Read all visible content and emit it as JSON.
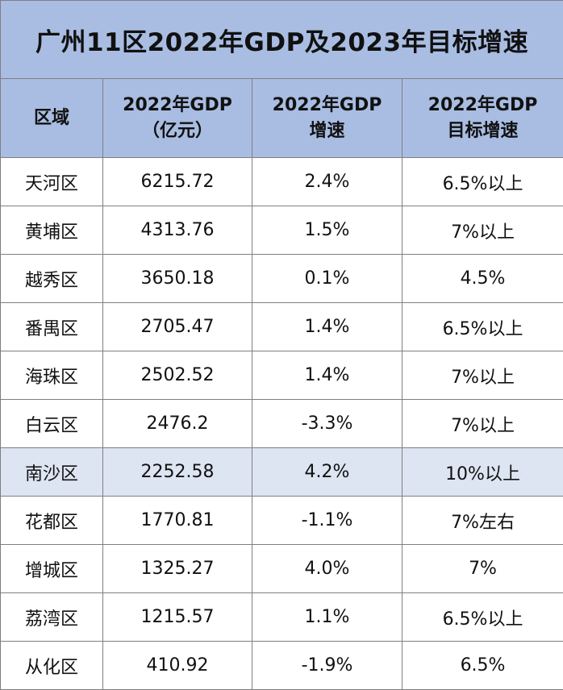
{
  "title": "广州11区2022年GDP及2023年目标增速",
  "headers": {
    "district": "区域",
    "gdp_line1": "2022年GDP",
    "gdp_line2": "（亿元）",
    "growth_line1": "2022年GDP",
    "growth_line2": "增速",
    "target_line1": "2022年GDP",
    "target_line2": "目标增速"
  },
  "rows": [
    {
      "district": "天河区",
      "gdp": "6215.72",
      "growth": "2.4%",
      "target": "6.5%以上"
    },
    {
      "district": "黄埔区",
      "gdp": "4313.76",
      "growth": "1.5%",
      "target": "7%以上"
    },
    {
      "district": "越秀区",
      "gdp": "3650.18",
      "growth": "0.1%",
      "target": "4.5%"
    },
    {
      "district": "番禺区",
      "gdp": "2705.47",
      "growth": "1.4%",
      "target": "6.5%以上"
    },
    {
      "district": "海珠区",
      "gdp": "2502.52",
      "growth": "1.4%",
      "target": "7%以上"
    },
    {
      "district": "白云区",
      "gdp": "2476.2",
      "growth": "-3.3%",
      "target": "7%以上"
    },
    {
      "district": "南沙区",
      "gdp": "2252.58",
      "growth": "4.2%",
      "target": "10%以上"
    },
    {
      "district": "花都区",
      "gdp": "1770.81",
      "growth": "-1.1%",
      "target": "7%左右"
    },
    {
      "district": "增城区",
      "gdp": "1325.27",
      "growth": "4.0%",
      "target": "7%"
    },
    {
      "district": "荔湾区",
      "gdp": "1215.57",
      "growth": "1.1%",
      "target": "6.5%以上"
    },
    {
      "district": "从化区",
      "gdp": "410.92",
      "growth": "-1.9%",
      "target": "6.5%"
    }
  ],
  "colors": {
    "header_bg": "#a9bde3",
    "highlight_bg": "#dde5f3",
    "border": "#7f7f7f"
  },
  "chart_data": {
    "type": "table",
    "title": "广州11区2022年GDP及2023年目标增速",
    "columns": [
      "区域",
      "2022年GDP（亿元）",
      "2022年GDP增速",
      "2022年GDP目标增速"
    ],
    "rows": [
      [
        "天河区",
        6215.72,
        "2.4%",
        "6.5%以上"
      ],
      [
        "黄埔区",
        4313.76,
        "1.5%",
        "7%以上"
      ],
      [
        "越秀区",
        3650.18,
        "0.1%",
        "4.5%"
      ],
      [
        "番禺区",
        2705.47,
        "1.4%",
        "6.5%以上"
      ],
      [
        "海珠区",
        2502.52,
        "1.4%",
        "7%以上"
      ],
      [
        "白云区",
        2476.2,
        "-3.3%",
        "7%以上"
      ],
      [
        "南沙区",
        2252.58,
        "4.2%",
        "10%以上"
      ],
      [
        "花都区",
        1770.81,
        "-1.1%",
        "7%左右"
      ],
      [
        "增城区",
        1325.27,
        "4.0%",
        "7%"
      ],
      [
        "荔湾区",
        1215.57,
        "1.1%",
        "6.5%以上"
      ],
      [
        "从化区",
        410.92,
        "-1.9%",
        "6.5%"
      ]
    ],
    "highlighted_row": "南沙区"
  }
}
